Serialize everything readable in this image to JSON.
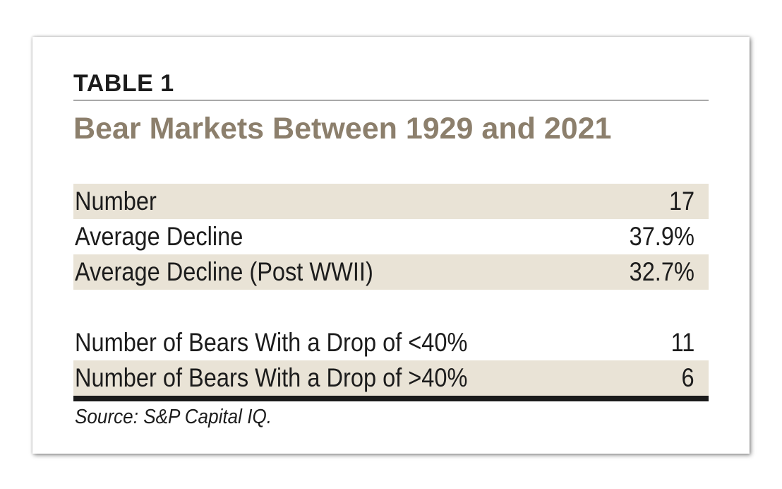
{
  "table": {
    "label": "TABLE 1",
    "title": "Bear Markets Between 1929 and 2021",
    "rows_group1": [
      {
        "label": "Number",
        "value": "17"
      },
      {
        "label": "Average Decline",
        "value": "37.9%"
      },
      {
        "label": "Average Decline (Post WWII)",
        "value": "32.7%"
      }
    ],
    "rows_group2": [
      {
        "label": "Number of Bears With a Drop of <40%",
        "value": "11"
      },
      {
        "label": "Number of Bears With a Drop of >40%",
        "value": "6"
      }
    ],
    "source": "Source: S&P Capital IQ."
  },
  "colors": {
    "title": "#8c7f6c",
    "shaded_row": "#e9e3d6",
    "text": "#1c1c1c",
    "thin_rule": "#a9a9a9",
    "thick_rule": "#1a1a1a"
  }
}
